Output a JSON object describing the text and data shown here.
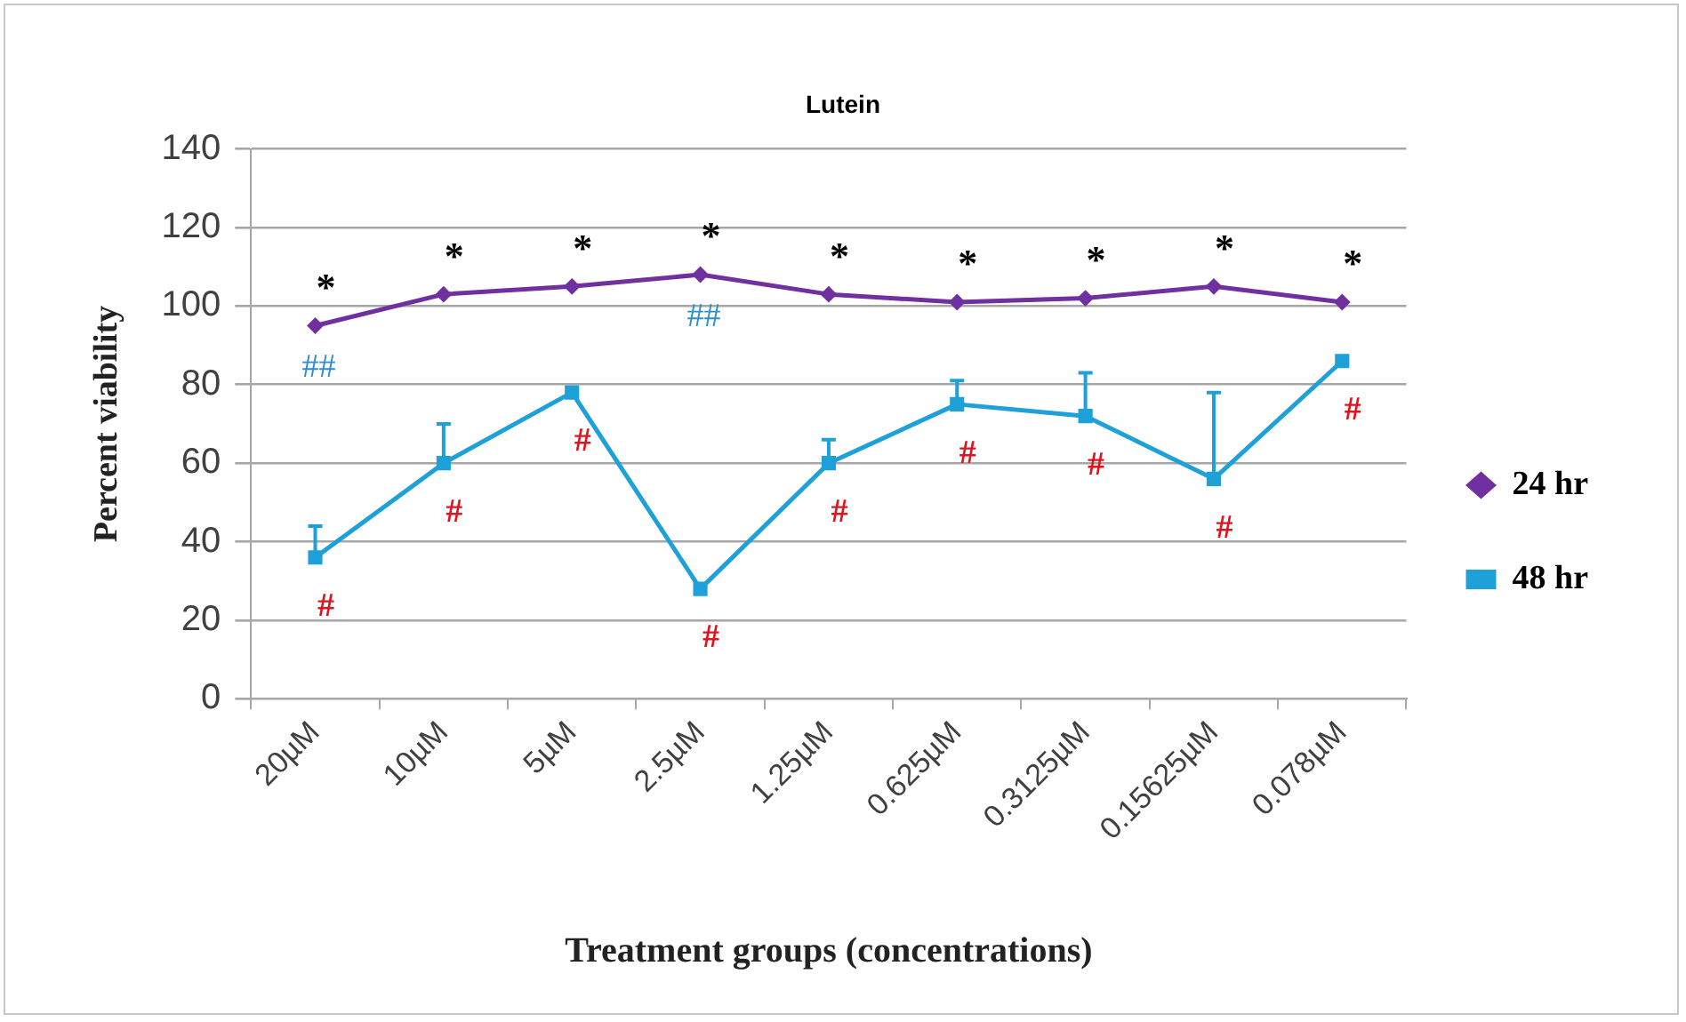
{
  "chart_data": {
    "type": "line",
    "title": "Lutein",
    "xlabel": "Treatment groups (concentrations)",
    "ylabel": "Percent viability",
    "categories": [
      "20µM",
      "10µM",
      "5µM",
      "2.5µM",
      "1.25µM",
      "0.625µM",
      "0.3125µM",
      "0.15625µM",
      "0.078µM"
    ],
    "series": [
      {
        "name": "24 hr",
        "color": "#7030a0",
        "marker": "diamond",
        "values": [
          95,
          103,
          105,
          108,
          103,
          101,
          102,
          105,
          101
        ],
        "value_labels": [
          "*",
          "*",
          "*",
          "*",
          "*",
          "*",
          "*",
          "*",
          "*"
        ]
      },
      {
        "name": "48 hr",
        "color": "#1ea0d8",
        "marker": "square",
        "values": [
          36,
          60,
          78,
          28,
          60,
          75,
          72,
          56,
          86
        ],
        "errors": [
          [
            36,
            44
          ],
          [
            60,
            70
          ],
          null,
          null,
          [
            60,
            66
          ],
          [
            75,
            81
          ],
          [
            72,
            83
          ],
          [
            56,
            78
          ],
          null
        ],
        "value_labels": [
          "#",
          "#",
          "#",
          "#",
          "#",
          "#",
          "#",
          "#",
          "#"
        ]
      }
    ],
    "ylim": [
      0,
      140
    ],
    "yticks": [
      0,
      20,
      40,
      60,
      80,
      100,
      120,
      140
    ],
    "grid": "y",
    "legend": "right",
    "line_style": "solid",
    "annotations": [
      {
        "text": "##",
        "x": "20µM",
        "y": 95
      },
      {
        "text": "##",
        "x": "2.5µM",
        "y": 108
      }
    ]
  }
}
